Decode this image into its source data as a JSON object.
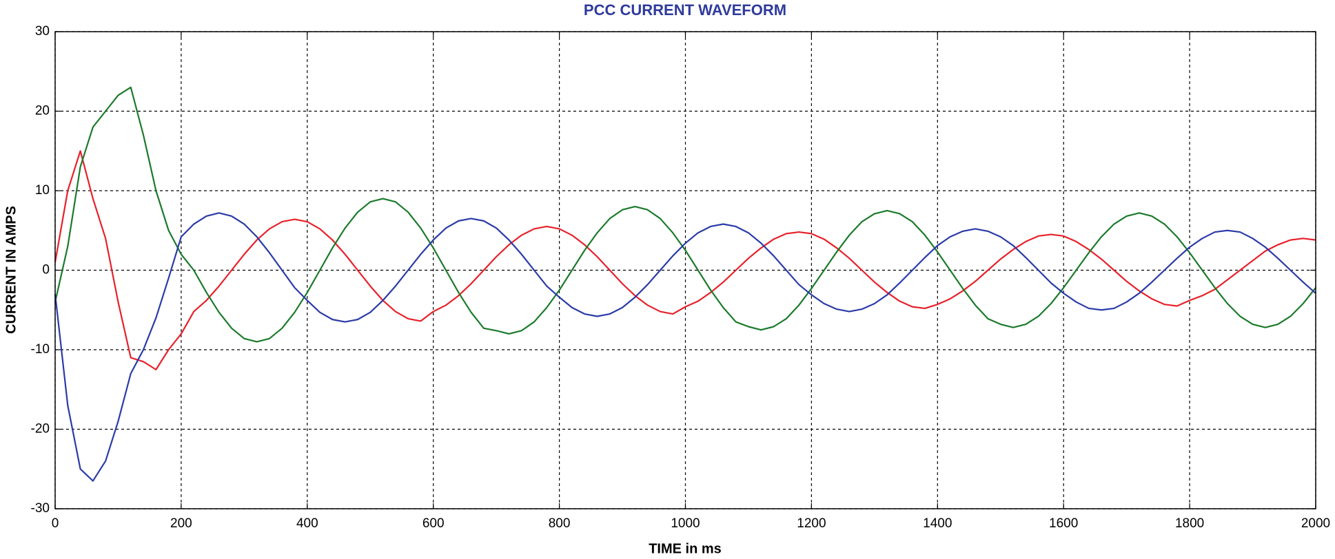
{
  "chart_data": {
    "type": "line",
    "title": "PCC CURRENT WAVEFORM",
    "x_label": "TIME in ms",
    "y_label": "CURRENT IN AMPS",
    "x": [
      0,
      20,
      40,
      60,
      80,
      100,
      120,
      140,
      160,
      180,
      200,
      220,
      240,
      260,
      280,
      300,
      320,
      340,
      360,
      380,
      400,
      420,
      440,
      460,
      480,
      500,
      520,
      540,
      560,
      580,
      600,
      620,
      640,
      660,
      680,
      700,
      720,
      740,
      760,
      780,
      800,
      820,
      840,
      860,
      880,
      900,
      920,
      940,
      960,
      980,
      1000,
      1020,
      1040,
      1060,
      1080,
      1100,
      1120,
      1140,
      1160,
      1180,
      1200,
      1220,
      1240,
      1260,
      1280,
      1300,
      1320,
      1340,
      1360,
      1380,
      1400,
      1420,
      1440,
      1460,
      1480,
      1500,
      1520,
      1540,
      1560,
      1580,
      1600,
      1620,
      1640,
      1660,
      1680,
      1700,
      1720,
      1740,
      1760,
      1780,
      1800,
      1820,
      1840,
      1860,
      1880,
      1900,
      1920,
      1940,
      1960,
      1980,
      2000
    ],
    "series": [
      {
        "color": "#e8202a",
        "values": [
          1,
          10,
          15,
          9,
          4,
          -4,
          -11,
          -11.5,
          -12.5,
          -10,
          -8,
          -5.2,
          -3.8,
          -2.0,
          0,
          2.0,
          3.8,
          5.2,
          6.1,
          6.4,
          6.1,
          5.2,
          3.8,
          2.0,
          0,
          -2.0,
          -3.8,
          -5.2,
          -6.1,
          -6.4,
          -5.2,
          -4.4,
          -3.2,
          -1.7,
          0,
          1.7,
          3.2,
          4.4,
          5.2,
          5.5,
          5.2,
          4.4,
          3.2,
          1.7,
          0,
          -1.7,
          -3.2,
          -4.4,
          -5.2,
          -5.5,
          -4.6,
          -3.9,
          -2.8,
          -1.5,
          0,
          1.5,
          2.8,
          3.9,
          4.6,
          4.8,
          4.6,
          3.9,
          2.8,
          1.5,
          0,
          -1.5,
          -2.8,
          -3.9,
          -4.6,
          -4.8,
          -4.3,
          -3.6,
          -2.6,
          -1.4,
          0,
          1.4,
          2.6,
          3.6,
          4.3,
          4.5,
          4.3,
          3.6,
          2.6,
          1.4,
          0,
          -1.4,
          -2.6,
          -3.6,
          -4.3,
          -4.5,
          -3.8,
          -3.2,
          -2.4,
          -1.2,
          0,
          1.2,
          2.4,
          3.2,
          3.8,
          4,
          3.8
        ]
      },
      {
        "color": "#1a7a2a",
        "values": [
          -4,
          3,
          13,
          18,
          20,
          22,
          23,
          17,
          10,
          5,
          2,
          0,
          -2.8,
          -5.3,
          -7.3,
          -8.6,
          -9,
          -8.6,
          -7.3,
          -5.3,
          -2.8,
          0,
          2.8,
          5.3,
          7.3,
          8.6,
          9,
          8.6,
          7.3,
          5.3,
          2.8,
          0,
          -2.8,
          -5.3,
          -7.3,
          -7.6,
          -8,
          -7.6,
          -6.5,
          -4.7,
          -2.5,
          0,
          2.5,
          4.7,
          6.5,
          7.6,
          8,
          7.6,
          6.5,
          4.7,
          2.5,
          0,
          -2.5,
          -4.7,
          -6.5,
          -7.1,
          -7.5,
          -7.1,
          -6.1,
          -4.4,
          -2.3,
          0,
          2.3,
          4.4,
          6.1,
          7.1,
          7.5,
          7.1,
          6.1,
          4.4,
          2.3,
          0,
          -2.3,
          -4.4,
          -6.1,
          -6.8,
          -7.2,
          -6.8,
          -5.8,
          -4.2,
          -2.2,
          0,
          2.2,
          4.2,
          5.8,
          6.8,
          7.2,
          6.8,
          5.8,
          4.2,
          2.2,
          0,
          -2.2,
          -4.2,
          -5.8,
          -6.8,
          -7.2,
          -6.8,
          -5.8,
          -4.2,
          -2.2
        ]
      },
      {
        "color": "#2a3aa8",
        "values": [
          -3,
          -17,
          -25,
          -26.5,
          -24,
          -19,
          -13,
          -10,
          -6,
          -1,
          4.2,
          5.8,
          6.8,
          7.2,
          6.8,
          5.8,
          4.2,
          2.2,
          0,
          -2.2,
          -3.8,
          -5.3,
          -6.2,
          -6.5,
          -6.2,
          -5.3,
          -3.8,
          -2.0,
          0,
          2.0,
          3.8,
          5.3,
          6.2,
          6.5,
          6.2,
          5.3,
          3.8,
          2.0,
          0,
          -2.0,
          -3.4,
          -4.7,
          -5.5,
          -5.8,
          -5.5,
          -4.7,
          -3.4,
          -1.8,
          0,
          1.8,
          3.4,
          4.7,
          5.5,
          5.8,
          5.5,
          4.7,
          3.4,
          1.8,
          0,
          -1.8,
          -3.1,
          -4.2,
          -4.9,
          -5.2,
          -4.9,
          -4.2,
          -3.1,
          -1.6,
          0,
          1.6,
          3.1,
          4.2,
          4.9,
          5.2,
          4.9,
          4.2,
          3.1,
          1.6,
          0,
          -1.6,
          -2.9,
          -4.0,
          -4.8,
          -5,
          -4.8,
          -4.0,
          -2.9,
          -1.5,
          0,
          1.5,
          2.9,
          4.0,
          4.8,
          5,
          4.8,
          4.0,
          2.9,
          1.5,
          0,
          -1.5,
          -2.9
        ]
      }
    ],
    "xlim": [
      0,
      2000
    ],
    "xticks": [
      0,
      200,
      400,
      600,
      800,
      1000,
      1200,
      1400,
      1600,
      1800,
      2000
    ],
    "ylim": [
      -30,
      30
    ],
    "yticks": [
      -30,
      -20,
      -10,
      0,
      10,
      20,
      30
    ],
    "grid": true
  }
}
